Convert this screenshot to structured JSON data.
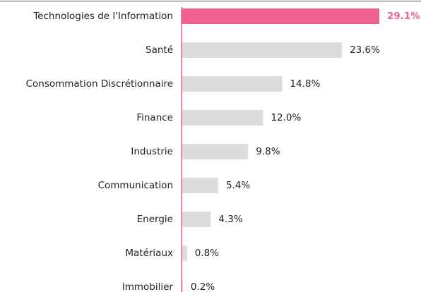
{
  "chart_data": {
    "type": "bar",
    "orientation": "horizontal",
    "categories": [
      "Technologies de l'Information",
      "Santé",
      "Consommation Discrétionnaire",
      "Finance",
      "Industrie",
      "Communication",
      "Energie",
      "Matériaux",
      "Immobilier"
    ],
    "values": [
      29.1,
      23.6,
      14.8,
      12.0,
      9.8,
      5.4,
      4.3,
      0.8,
      0.2
    ],
    "value_labels": [
      "29.1%",
      "23.6%",
      "14.8%",
      "12.0%",
      "9.8%",
      "5.4%",
      "4.3%",
      "0.8%",
      "0.2%"
    ],
    "color": "#dcdcdc",
    "highlight_color": "#f0608f",
    "highlight": 0
  }
}
